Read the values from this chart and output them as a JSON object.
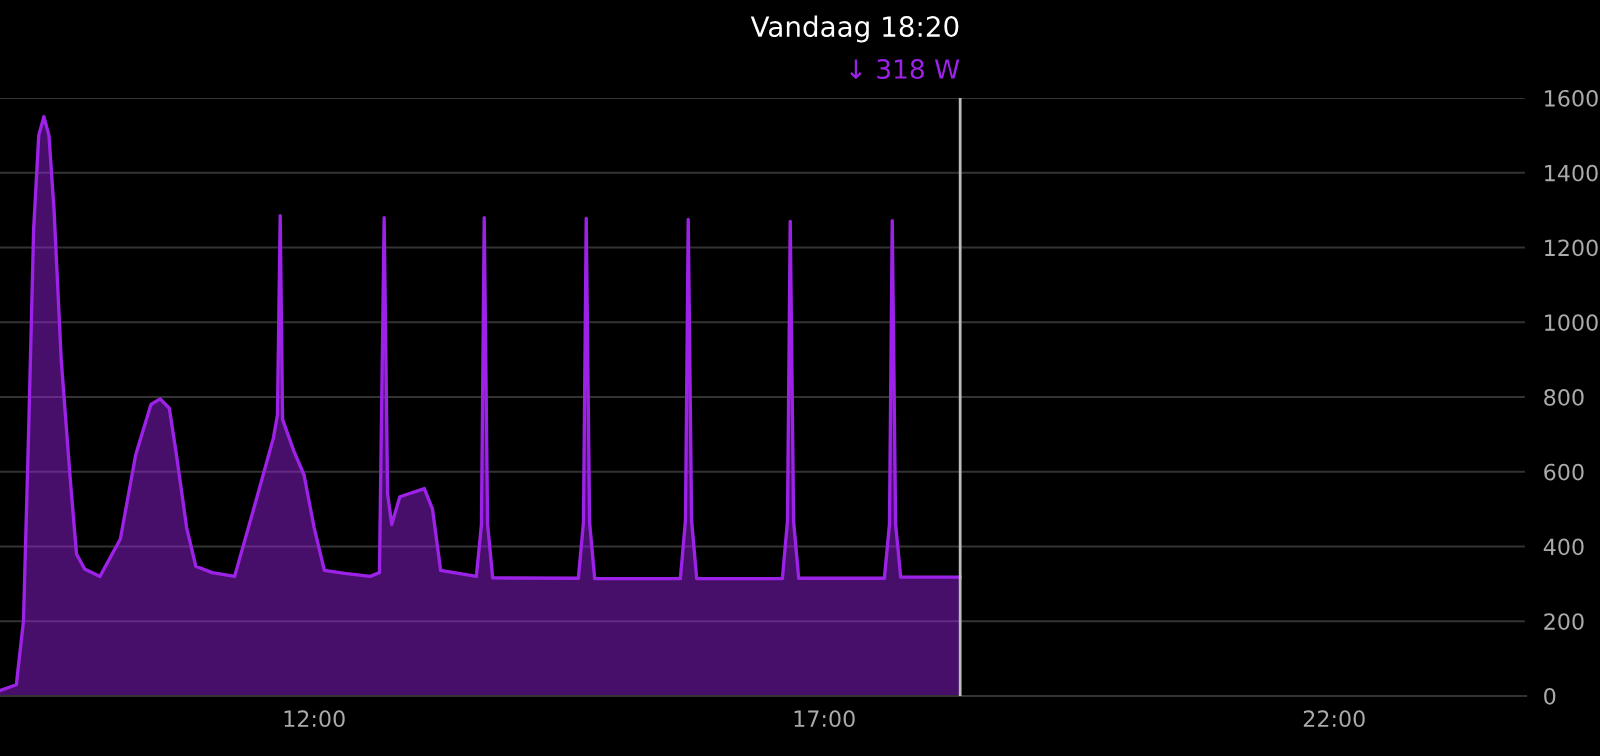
{
  "chart_data": {
    "type": "area",
    "series": [
      {
        "color": "#9d22e8",
        "x": [
          8.92,
          9.08,
          9.15,
          9.2,
          9.25,
          9.3,
          9.35,
          9.4,
          9.45,
          9.52,
          9.61,
          9.67,
          9.75,
          9.9,
          10.1,
          10.25,
          10.4,
          10.49,
          10.58,
          10.65,
          10.75,
          10.84,
          11.0,
          11.22,
          11.43,
          11.6,
          11.64,
          11.667,
          11.69,
          11.8,
          11.9,
          12.0,
          12.1,
          12.3,
          12.55,
          12.64,
          12.686,
          12.72,
          12.76,
          12.84,
          13.08,
          13.16,
          13.24,
          13.59,
          13.64,
          13.667,
          13.7,
          13.75,
          14.59,
          14.64,
          14.667,
          14.7,
          14.75,
          15.59,
          15.64,
          15.667,
          15.7,
          15.75,
          16.59,
          16.64,
          16.667,
          16.7,
          16.75,
          17.59,
          17.64,
          17.667,
          17.7,
          17.75,
          18.2,
          18.333
        ],
        "values": [
          15,
          30,
          200,
          700,
          1250,
          1500,
          1550,
          1500,
          1300,
          900,
          576,
          380,
          340,
          320,
          420,
          645,
          780,
          795,
          770,
          645,
          450,
          347,
          330,
          320,
          523,
          690,
          752,
          1285,
          740,
          656,
          592,
          450,
          336,
          328,
          320,
          330,
          1280,
          540,
          459,
          533,
          555,
          500,
          336,
          320,
          460,
          1280,
          460,
          316,
          315,
          465,
          1278,
          465,
          314,
          314,
          470,
          1275,
          470,
          314,
          314,
          468,
          1270,
          468,
          315,
          315,
          460,
          1272,
          460,
          318,
          318,
          318
        ]
      }
    ],
    "xlim": [
      8.92,
      23.88
    ],
    "xticks": [
      {
        "value": 12,
        "label": "12:00"
      },
      {
        "value": 17,
        "label": "17:00"
      },
      {
        "value": 22,
        "label": "22:00"
      }
    ],
    "ylim": [
      0,
      1600
    ],
    "yticks": [
      0,
      200,
      400,
      600,
      800,
      1000,
      1200,
      1400,
      1600
    ],
    "grid": "y",
    "ref_lines": [
      {
        "axis": "x",
        "value": 18.333,
        "label": "Vandaag 18:20",
        "color": "#bbbbbb"
      }
    ],
    "annotations": [
      "↓ 318 W"
    ]
  }
}
